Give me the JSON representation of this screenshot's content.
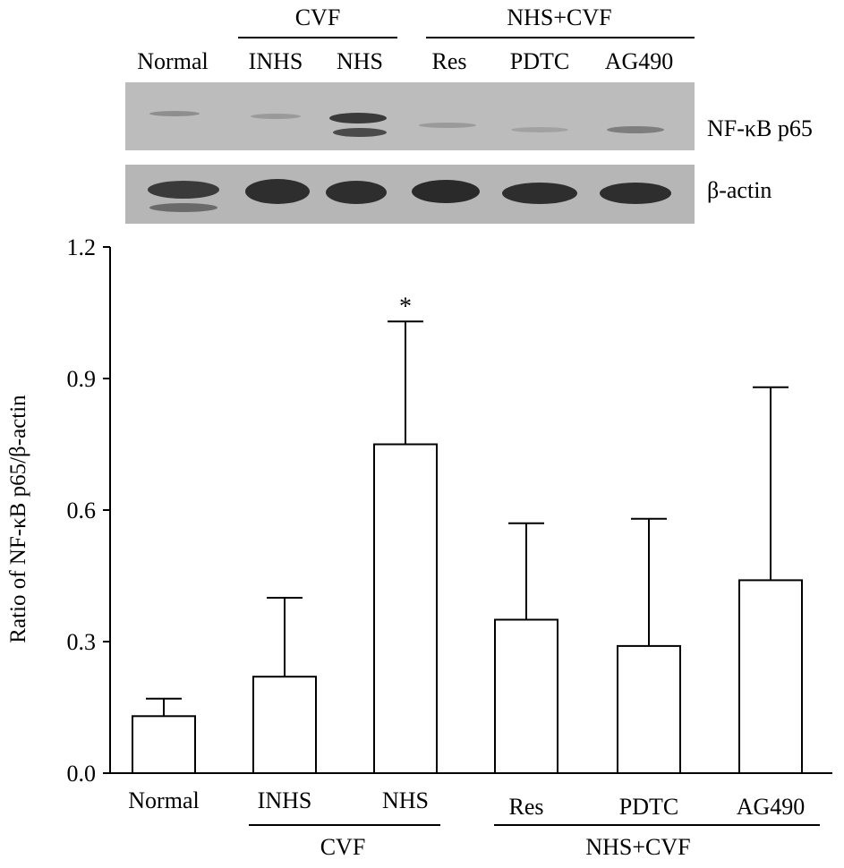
{
  "blot": {
    "group_headers": [
      "CVF",
      "NHS+CVF"
    ],
    "lane_labels": [
      "Normal",
      "INHS",
      "NHS",
      "Res",
      "PDTC",
      "AG490"
    ],
    "row_labels": [
      "NF-κB p65",
      "β-actin"
    ]
  },
  "chart_data": {
    "type": "bar",
    "title": "",
    "xlabel": "",
    "ylabel": "Ratio of NF-κB p65/β-actin",
    "categories": [
      "Normal",
      "INHS",
      "NHS",
      "Res",
      "PDTC",
      "AG490"
    ],
    "series": [
      {
        "name": "Ratio of NF-κB p65/β-actin",
        "values": [
          0.13,
          0.22,
          0.75,
          0.35,
          0.29,
          0.44
        ],
        "error_upper": [
          0.17,
          0.4,
          1.03,
          0.57,
          0.58,
          0.88
        ]
      }
    ],
    "annotations": [
      {
        "category": "NHS",
        "text": "*"
      }
    ],
    "group_labels": [
      "CVF",
      "NHS+CVF"
    ],
    "yticks": [
      "0.0",
      "0.3",
      "0.6",
      "0.9",
      "1.2"
    ],
    "ylim": [
      0,
      1.2
    ],
    "grid": false,
    "legend": "none"
  },
  "style": {
    "bar_fill": "#ffffff",
    "stroke": "#000000",
    "blot_bg": "#b4b4b4",
    "band_color": "#2a2a2a"
  }
}
